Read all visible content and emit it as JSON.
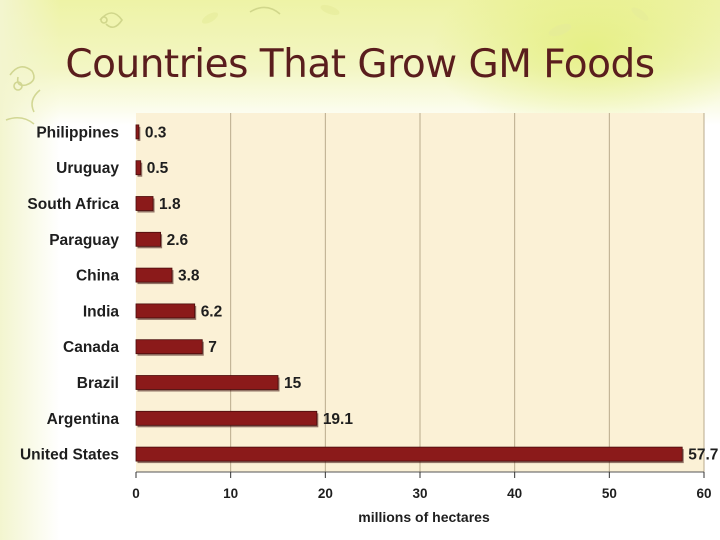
{
  "title": "Countries That Grow GM Foods",
  "colors": {
    "bar_fill": "#8b1a1a",
    "bar_shadow": "#3a0a0a",
    "plot_bg": "#fbf1d6",
    "grid": "#b9aa8c",
    "title": "#5a1d1d"
  },
  "chart_data": {
    "type": "bar",
    "orientation": "horizontal",
    "title": "Countries That Grow GM Foods",
    "categories": [
      "Philippines",
      "Uruguay",
      "South Africa",
      "Paraguay",
      "China",
      "India",
      "Canada",
      "Brazil",
      "Argentina",
      "United States"
    ],
    "values": [
      0.3,
      0.5,
      1.8,
      2.6,
      3.8,
      6.2,
      7,
      15,
      19.1,
      57.7
    ],
    "value_labels": [
      "0.3",
      "0.5",
      "1.8",
      "2.6",
      "3.8",
      "6.2",
      "7",
      "15",
      "19.1",
      "57.7"
    ],
    "xlabel": "millions of hectares",
    "ylabel": "",
    "xlim": [
      0,
      60
    ],
    "xticks": [
      0,
      10,
      20,
      30,
      40,
      50,
      60
    ],
    "grid": true
  }
}
